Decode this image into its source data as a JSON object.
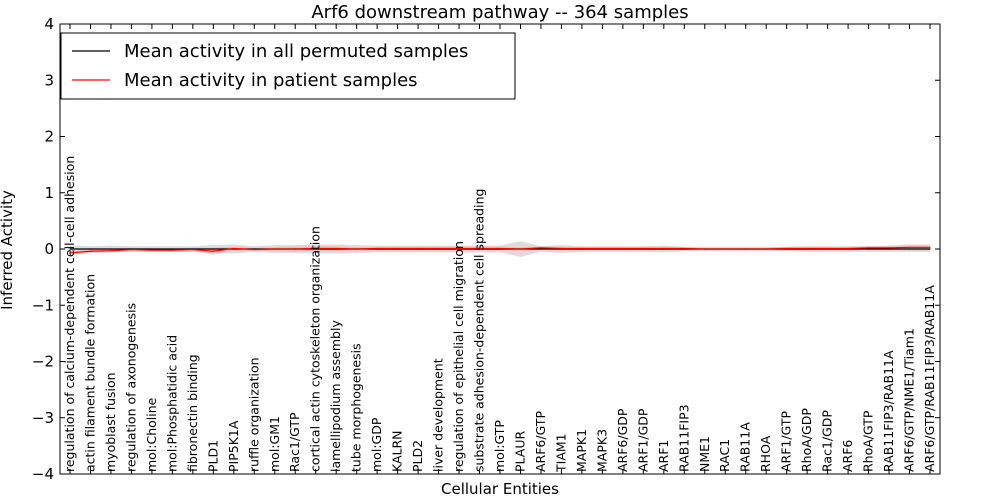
{
  "chart_data": {
    "type": "line",
    "title": "Arf6 downstream pathway -- 364 samples",
    "xlabel": "Cellular Entities",
    "ylabel": "Inferred Activity",
    "ylim": [
      -4,
      4
    ],
    "yticks": [
      -4,
      -3,
      -2,
      -1,
      0,
      1,
      2,
      3,
      4
    ],
    "ytick_labels": [
      "−4",
      "−3",
      "−2",
      "−1",
      "0",
      "1",
      "2",
      "3",
      "4"
    ],
    "legend_position": "top-left",
    "categories": [
      "regulation of calcium-dependent cell-cell adhesion",
      "actin filament bundle formation",
      "myoblast fusion",
      "regulation of axonogenesis",
      "mol:Choline",
      "mol:Phosphatidic acid",
      "fibronectin binding",
      "PLD1",
      "PIP5K1A",
      "ruffle organization",
      "mol:GM1",
      "Rac1/GTP",
      "cortical actin cytoskeleton organization",
      "lamellipodium assembly",
      "tube morphogenesis",
      "mol:GDP",
      "KALRN",
      "PLD2",
      "liver development",
      "regulation of epithelial cell migration",
      "substrate adhesion-dependent cell spreading",
      "mol:GTP",
      "PLAUR",
      "ARF6/GTP",
      "TIAM1",
      "MAPK1",
      "MAPK3",
      "ARF6/GDP",
      "ARF1/GDP",
      "ARF1",
      "RAB11FIP3",
      "NME1",
      "RAC1",
      "RAB11A",
      "RHOA",
      "ARF1/GTP",
      "RhoA/GDP",
      "Rac1/GDP",
      "ARF6",
      "RhoA/GTP",
      "RAB11FIP3/RAB11A",
      "ARF6/GTP/NME1/Tiam1",
      "ARF6/GTP/RAB11FIP3/RAB11A"
    ],
    "series": [
      {
        "name": "Mean activity in all permuted samples",
        "color": "#000000",
        "values": [
          0,
          0,
          0,
          0,
          0,
          0,
          0,
          0,
          0,
          0,
          0,
          0,
          0,
          0,
          0,
          0,
          0,
          0,
          0,
          0,
          0,
          0,
          0,
          0,
          0,
          0,
          0,
          0,
          0,
          0,
          0,
          0,
          0,
          0,
          0,
          0,
          0,
          0,
          0,
          0,
          0,
          0,
          0
        ],
        "band_halfwidth": [
          0.06,
          0.05,
          0.06,
          0.05,
          0.05,
          0.05,
          0.05,
          0.07,
          0.08,
          0.05,
          0.07,
          0.07,
          0.08,
          0.08,
          0.07,
          0.06,
          0.06,
          0.06,
          0.06,
          0.06,
          0.06,
          0.06,
          0.14,
          0.05,
          0.07,
          0.05,
          0.05,
          0.05,
          0.05,
          0.06,
          0.04,
          0.04,
          0.04,
          0.04,
          0.04,
          0.04,
          0.05,
          0.05,
          0.05,
          0.05,
          0.05,
          0.05,
          0.05
        ],
        "band_color": "#bfbfbf"
      },
      {
        "name": "Mean activity in patient samples",
        "color": "#ff0000",
        "values": [
          -0.07,
          -0.04,
          -0.03,
          -0.01,
          -0.02,
          -0.02,
          -0.01,
          -0.04,
          0.01,
          -0.01,
          0.0,
          0.0,
          0.01,
          0.01,
          0.0,
          0.01,
          0.01,
          0.01,
          0.01,
          0.01,
          0.01,
          0.01,
          0.0,
          0.02,
          0.01,
          0.01,
          0.01,
          0.01,
          0.01,
          0.01,
          0.01,
          0.0,
          0.0,
          0.0,
          0.0,
          0.01,
          0.01,
          0.01,
          0.01,
          0.02,
          0.02,
          0.03,
          0.03
        ],
        "band_halfwidth": [
          0.03,
          0.03,
          0.03,
          0.03,
          0.03,
          0.03,
          0.03,
          0.06,
          0.03,
          0.03,
          0.03,
          0.04,
          0.04,
          0.04,
          0.03,
          0.03,
          0.03,
          0.03,
          0.03,
          0.03,
          0.03,
          0.03,
          0.03,
          0.03,
          0.03,
          0.03,
          0.03,
          0.03,
          0.03,
          0.03,
          0.02,
          0.02,
          0.02,
          0.02,
          0.02,
          0.03,
          0.03,
          0.03,
          0.03,
          0.03,
          0.04,
          0.05,
          0.05
        ],
        "band_color": "#f4a6a6"
      }
    ]
  }
}
